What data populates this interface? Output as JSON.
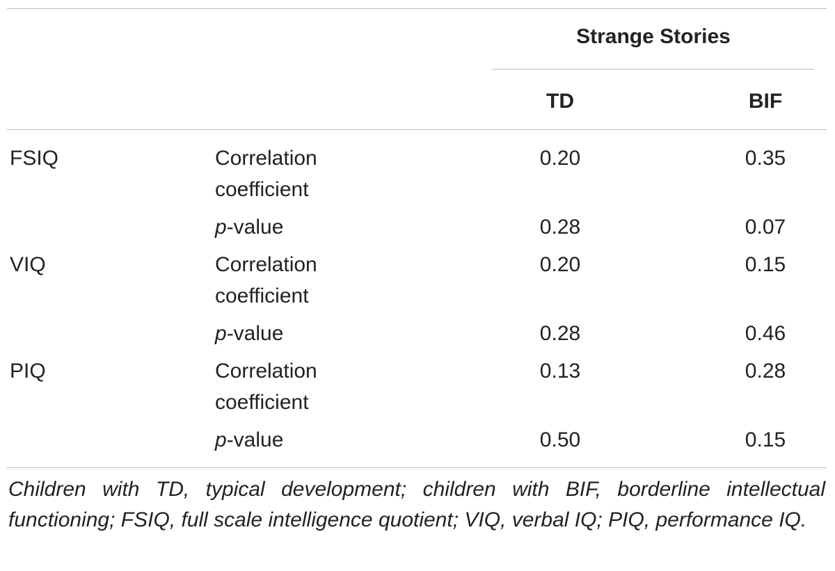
{
  "table": {
    "group_header": "Strange Stories",
    "columns": [
      "TD",
      "BIF"
    ],
    "rows": [
      {
        "measure": "FSIQ",
        "stat_line1": "Correlation",
        "stat_line2": "coefficient",
        "td": "0.20",
        "bif": "0.35"
      },
      {
        "measure": "",
        "stat_italic": "p",
        "stat_rest": "-value",
        "td": "0.28",
        "bif": "0.07"
      },
      {
        "measure": "VIQ",
        "stat_line1": "Correlation",
        "stat_line2": "coefficient",
        "td": "0.20",
        "bif": "0.15"
      },
      {
        "measure": "",
        "stat_italic": "p",
        "stat_rest": "-value",
        "td": "0.28",
        "bif": "0.46"
      },
      {
        "measure": "PIQ",
        "stat_line1": "Correlation",
        "stat_line2": "coefficient",
        "td": "0.13",
        "bif": "0.28"
      },
      {
        "measure": "",
        "stat_italic": "p",
        "stat_rest": "-value",
        "td": "0.50",
        "bif": "0.15"
      }
    ],
    "footnote": "Children with TD, typical development; children with BIF, borderline intellectual functioning; FSIQ, full scale intelligence quotient; VIQ, verbal IQ; PIQ, performance IQ."
  }
}
